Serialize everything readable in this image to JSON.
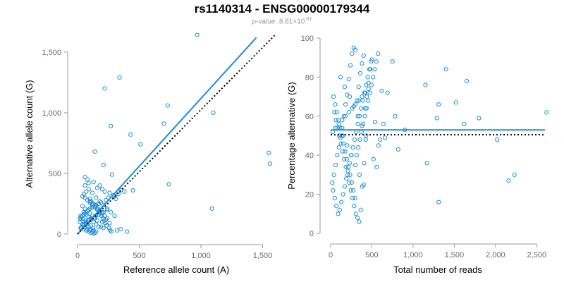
{
  "title": "rs1140314 - ENSG00000179344",
  "subtitle": {
    "prefix": "p-value: 8.81×10",
    "exponent": "-81"
  },
  "colors": {
    "series": "#1f8dd6",
    "reference_line": "#000000",
    "axis": "#9a9a9a",
    "tick_text": "#6a6a6a"
  },
  "chart_data": [
    {
      "type": "scatter",
      "xlabel": "Reference allele count (A)",
      "ylabel": "Alternative allele count (G)",
      "xlim": [
        0,
        1600
      ],
      "ylim": [
        0,
        1650
      ],
      "xticks": [
        0,
        500,
        1000,
        1500
      ],
      "xtick_labels": [
        "0",
        "500",
        "1,000",
        "1,500"
      ],
      "yticks": [
        0,
        500,
        1000,
        1500
      ],
      "ytick_labels": [
        "0",
        "500",
        "1,000",
        "1,500"
      ],
      "grid": false,
      "series": [
        {
          "marker": "open-circle",
          "x": [
            970,
            340,
            220,
            730,
            270,
            430,
            700,
            510,
            1090,
            140,
            1100,
            1550,
            1560,
            740,
            210,
            280,
            350,
            450,
            380,
            330,
            300,
            250,
            230,
            190,
            170,
            150,
            120,
            100,
            90,
            80,
            70,
            60,
            50,
            40,
            30,
            20,
            130,
            160,
            180,
            200,
            220,
            260,
            290,
            310,
            240,
            210,
            170,
            150,
            140,
            110,
            95,
            85,
            75,
            65,
            55,
            45,
            35,
            25,
            100,
            120,
            140,
            160,
            180,
            200,
            60,
            80,
            100,
            120,
            140,
            160,
            180,
            200,
            220,
            240,
            40,
            60,
            80,
            100,
            120,
            140,
            160,
            50,
            70,
            90,
            110,
            130,
            150,
            170,
            30,
            50,
            70,
            90,
            110,
            130,
            150,
            20,
            40,
            60,
            80,
            100,
            120,
            140,
            30,
            50,
            70,
            90,
            110,
            130,
            25,
            45,
            65,
            85,
            105,
            125,
            60,
            90,
            120,
            150,
            180,
            210,
            240,
            270,
            300,
            230,
            260,
            190,
            350,
            320,
            400,
            200,
            210,
            80,
            90,
            60,
            70,
            50,
            40,
            100,
            110,
            130,
            145,
            165,
            175,
            185,
            195,
            205,
            215,
            225,
            235,
            255,
            265,
            275
          ],
          "y": [
            1640,
            1290,
            1200,
            1060,
            890,
            820,
            910,
            740,
            210,
            680,
            1000,
            670,
            580,
            410,
            570,
            490,
            360,
            360,
            350,
            330,
            310,
            300,
            280,
            260,
            250,
            240,
            220,
            210,
            200,
            190,
            180,
            170,
            160,
            150,
            140,
            130,
            430,
            380,
            400,
            370,
            350,
            340,
            320,
            290,
            200,
            180,
            160,
            150,
            140,
            130,
            120,
            110,
            100,
            90,
            80,
            70,
            60,
            50,
            260,
            240,
            220,
            200,
            190,
            180,
            300,
            280,
            270,
            250,
            230,
            210,
            190,
            170,
            150,
            130,
            230,
            210,
            190,
            170,
            150,
            130,
            110,
            180,
            160,
            140,
            120,
            100,
            80,
            60,
            120,
            100,
            80,
            60,
            40,
            30,
            20,
            100,
            80,
            60,
            40,
            30,
            20,
            10,
            50,
            40,
            30,
            20,
            10,
            5,
            150,
            130,
            110,
            90,
            70,
            50,
            400,
            370,
            340,
            300,
            270,
            240,
            210,
            180,
            150,
            120,
            90,
            60,
            40,
            30,
            20,
            100,
            50,
            450,
            420,
            470,
            350,
            330,
            310,
            290,
            270,
            250,
            230,
            210,
            190,
            170,
            150,
            130,
            110,
            90,
            70,
            50,
            30,
            20
          ]
        }
      ],
      "fit_line": {
        "x": [
          0,
          1450
        ],
        "y": [
          0,
          1620
        ]
      },
      "reference_line": {
        "x": [
          0,
          1600
        ],
        "y": [
          0,
          1640
        ]
      }
    },
    {
      "type": "scatter",
      "xlabel": "Total number of reads",
      "ylabel": "Percentage alternative (G)",
      "xlim": [
        0,
        2600
      ],
      "ylim": [
        0,
        100
      ],
      "xticks": [
        0,
        500,
        1000,
        1500,
        2000,
        2500
      ],
      "xtick_labels": [
        "0",
        "500",
        "1,000",
        "1,500",
        "2,000",
        "2,500"
      ],
      "yticks": [
        0,
        20,
        40,
        60,
        80,
        100
      ],
      "ytick_labels": [
        "0",
        "20",
        "40",
        "60",
        "80",
        "100"
      ],
      "grid": false,
      "series": [
        {
          "marker": "open-circle",
          "x": [
            2620,
            2230,
            2160,
            2020,
            1800,
            1650,
            1620,
            1520,
            1400,
            1310,
            1310,
            1290,
            1170,
            1150,
            900,
            820,
            780,
            750,
            690,
            660,
            640,
            620,
            600,
            580,
            560,
            540,
            520,
            500,
            480,
            460,
            440,
            420,
            400,
            380,
            360,
            340,
            320,
            300,
            280,
            260,
            240,
            220,
            200,
            180,
            160,
            140,
            120,
            100,
            80,
            60,
            40,
            20,
            30,
            50,
            70,
            90,
            110,
            130,
            150,
            170,
            190,
            210,
            230,
            250,
            270,
            290,
            310,
            330,
            350,
            370,
            390,
            410,
            430,
            450,
            470,
            490,
            45,
            65,
            85,
            105,
            125,
            145,
            165,
            185,
            205,
            225,
            245,
            265,
            285,
            305,
            325,
            345,
            365,
            385,
            405,
            425,
            35,
            55,
            75,
            95,
            115,
            135,
            155,
            175,
            195,
            215,
            235,
            255,
            275,
            295,
            315,
            335,
            355,
            375,
            395,
            415,
            435,
            455,
            475,
            495,
            515,
            535,
            555,
            575,
            25,
            60,
            100,
            140,
            180,
            220,
            260,
            300,
            340,
            380,
            420,
            460,
            150,
            200,
            250,
            300,
            350,
            400,
            120,
            170,
            230,
            280,
            330,
            380,
            430
          ],
          "y": [
            62,
            30,
            27,
            48,
            59,
            78,
            56,
            67,
            84,
            16,
            66,
            59,
            36,
            76,
            53,
            43,
            60,
            88,
            72,
            49,
            56,
            73,
            48,
            45,
            34,
            57,
            38,
            89,
            84,
            77,
            70,
            64,
            91,
            87,
            82,
            75,
            68,
            94,
            95,
            92,
            86,
            79,
            71,
            66,
            60,
            54,
            49,
            44,
            40,
            35,
            30,
            26,
            22,
            18,
            14,
            10,
            12,
            16,
            20,
            24,
            28,
            32,
            36,
            40,
            44,
            48,
            52,
            56,
            60,
            64,
            68,
            72,
            76,
            80,
            84,
            88,
            62,
            58,
            54,
            50,
            46,
            42,
            38,
            34,
            30,
            26,
            22,
            18,
            14,
            10,
            8,
            6,
            12,
            24,
            36,
            48,
            70,
            66,
            62,
            58,
            54,
            50,
            46,
            42,
            38,
            34,
            30,
            26,
            22,
            18,
            40,
            44,
            48,
            52,
            56,
            60,
            64,
            68,
            72,
            76,
            80,
            84,
            88,
            92,
            52,
            54,
            56,
            58,
            60,
            62,
            64,
            66,
            68,
            70,
            72,
            74,
            50,
            45,
            40,
            35,
            30,
            25,
            80,
            75,
            70,
            65,
            60,
            55,
            50
          ]
        }
      ],
      "fit_line": {
        "x": [
          0,
          2600
        ],
        "y": [
          53,
          53
        ]
      },
      "reference_line": {
        "x": [
          0,
          2600
        ],
        "y": [
          50.5,
          50.5
        ]
      }
    }
  ]
}
